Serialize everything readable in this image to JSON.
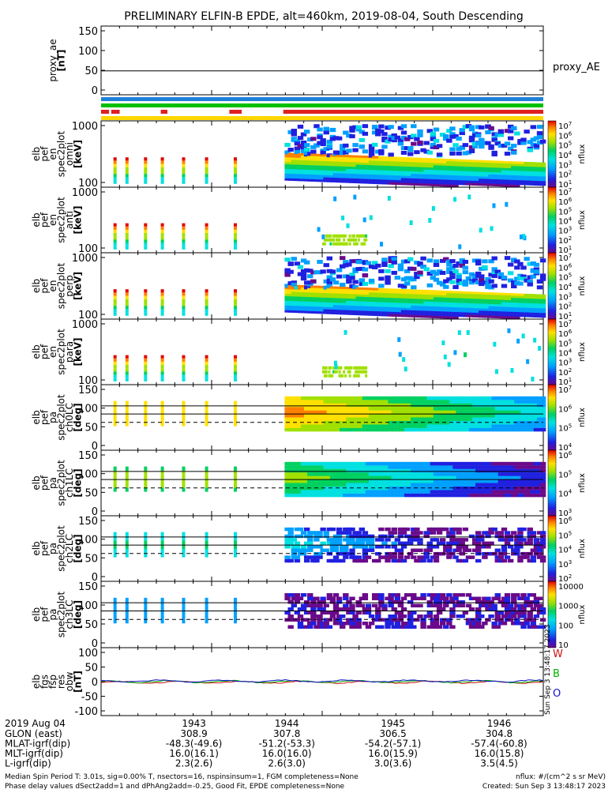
{
  "chart_data": {
    "type": "spectrogram",
    "title": "PRELIMINARY ELFIN-B EPDE, alt=460km, 2019-08-04, South Descending",
    "time_axis": {
      "date_label": "2019 Aug 04",
      "ticks": [
        "1943",
        "1944",
        "1945",
        "1946"
      ]
    },
    "orbit_table": {
      "rows": [
        {
          "label": "GLON (east)",
          "values": [
            "308.9",
            "307.8",
            "306.5",
            "304.8"
          ]
        },
        {
          "label": "MLAT-igrf(dip)",
          "values": [
            "-48.3(-49.6)",
            "-51.2(-53.3)",
            "-54.2(-57.1)",
            "-57.4(-60.8)"
          ]
        },
        {
          "label": "MLT-igrf(dip)",
          "values": [
            "16.0(16.1)",
            "16.0(16.0)",
            "16.0(15.9)",
            "16.0(15.8)"
          ]
        },
        {
          "label": "L-igrf(dip)",
          "values": [
            "2.3(2.6)",
            "2.6(3.0)",
            "3.0(3.6)",
            "3.5(4.5)"
          ]
        }
      ]
    },
    "footnotes": {
      "left1": "Median Spin Period T: 3.01s, sig=0.00% T, nsectors=16, nspinsinsum=1, FGM completeness=None",
      "left2": "Phase delay values dSect2add=1 and dPhAng2add=-0.25, Good Fit, EPDE completeness=None",
      "right1": "nflux: #/(cm^2 s sr MeV)",
      "right2": "Created: Sun Sep  3 13:48:17 2023",
      "side_stamp": "Sun Sep  3 13:48:17 2023"
    },
    "panels": [
      {
        "id": "proxy_ae",
        "type": "line",
        "ylabel_lines": [
          "proxy_ae",
          "[nT]"
        ],
        "ylim": [
          -10,
          160
        ],
        "yticks": [
          "150",
          "100",
          "50",
          "0"
        ],
        "series": [
          {
            "name": "proxy_AE",
            "value": 49
          }
        ]
      },
      {
        "id": "bars",
        "type": "status_bars",
        "bars": [
          {
            "color": "#1e7fd8",
            "full": true
          },
          {
            "color": "#00c000",
            "full": true
          },
          {
            "color": "#e02020",
            "segments": [
              [
                0.0,
                0.018
              ],
              [
                0.023,
                0.042
              ],
              [
                0.135,
                0.15
              ],
              [
                0.29,
                0.318
              ],
              [
                0.412,
                1.0
              ]
            ]
          },
          {
            "color": "#ffd700",
            "full": true
          }
        ]
      },
      {
        "id": "omni",
        "type": "energy_spec",
        "ylabel_lines": [
          "elb",
          "pef",
          "en",
          "spec2plot",
          "omni",
          "[keV]"
        ],
        "yticks": [
          "1000",
          "100"
        ],
        "colorbar": {
          "label": "nflux",
          "ticks": [
            "10",
            "10",
            "10",
            "10",
            "10",
            "10",
            "10"
          ],
          "exps": [
            "7",
            "6",
            "5",
            "4",
            "3",
            "2",
            "1"
          ]
        }
      },
      {
        "id": "anti",
        "type": "energy_spec",
        "ylabel_lines": [
          "elb",
          "pef",
          "en",
          "spec2plot",
          "anti",
          "[keV]"
        ],
        "yticks": [
          "1000",
          "100"
        ],
        "colorbar": {
          "label": "nflux",
          "ticks": [
            "10",
            "10",
            "10",
            "10",
            "10",
            "10",
            "10"
          ],
          "exps": [
            "7",
            "6",
            "5",
            "4",
            "3",
            "2",
            "1"
          ]
        }
      },
      {
        "id": "perp",
        "type": "energy_spec",
        "ylabel_lines": [
          "elb",
          "pef",
          "en",
          "spec2plot",
          "perp",
          "[keV]"
        ],
        "yticks": [
          "1000",
          "100"
        ],
        "colorbar": {
          "label": "nflux",
          "ticks": [
            "10",
            "10",
            "10",
            "10",
            "10",
            "10",
            "10"
          ],
          "exps": [
            "7",
            "6",
            "5",
            "4",
            "3",
            "2",
            "1"
          ]
        }
      },
      {
        "id": "para",
        "type": "energy_spec",
        "ylabel_lines": [
          "elb",
          "pef",
          "en",
          "spec2plot",
          "para",
          "[keV]"
        ],
        "yticks": [
          "1000",
          "100"
        ],
        "colorbar": {
          "label": "nflux",
          "ticks": [
            "10",
            "10",
            "10",
            "10",
            "10",
            "10",
            "10"
          ],
          "exps": [
            "7",
            "6",
            "5",
            "4",
            "3",
            "2",
            "1"
          ]
        }
      },
      {
        "id": "ch0LC",
        "type": "pitch_spec",
        "ylabel_lines": [
          "elb",
          "pef",
          "pa",
          "spec2plot",
          "ch0LC",
          "[deg]"
        ],
        "yticks": [
          "150",
          "100",
          "50",
          "0"
        ],
        "colorbar": {
          "label": "nflux",
          "ticks": [
            "10",
            "10",
            "10",
            "10"
          ],
          "exps": [
            "7",
            "6",
            "5",
            "4"
          ]
        }
      },
      {
        "id": "ch1LC",
        "type": "pitch_spec",
        "ylabel_lines": [
          "elb",
          "pef",
          "pa",
          "spec2plot",
          "ch1LC",
          "[deg]"
        ],
        "yticks": [
          "150",
          "100",
          "50",
          "0"
        ],
        "colorbar": {
          "label": "nflux",
          "ticks": [
            "10",
            "10",
            "10",
            "10"
          ],
          "exps": [
            "6",
            "5",
            "4",
            "3"
          ]
        }
      },
      {
        "id": "ch2LC",
        "type": "pitch_spec",
        "ylabel_lines": [
          "elb",
          "pef",
          "pa",
          "spec2plot",
          "ch2LC",
          "[deg]"
        ],
        "yticks": [
          "150",
          "100",
          "50",
          "0"
        ],
        "colorbar": {
          "label": "nflux",
          "ticks": [
            "10",
            "10",
            "10",
            "10",
            "10"
          ],
          "exps": [
            "6",
            "5",
            "4",
            "3",
            "2"
          ]
        }
      },
      {
        "id": "ch3LC",
        "type": "pitch_spec",
        "ylabel_lines": [
          "elb",
          "pef",
          "pa",
          "spec2plot",
          "ch3LC",
          "[deg]"
        ],
        "yticks": [
          "150",
          "100",
          "50",
          "0"
        ],
        "colorbar": {
          "label": "nflux",
          "ticks": [
            "10000",
            "1000",
            "100",
            "10"
          ],
          "exps": [
            "",
            "",
            "",
            ""
          ]
        }
      },
      {
        "id": "fgs",
        "type": "line",
        "ylabel_lines": [
          "elb",
          "fgs",
          "fsp",
          "res",
          "obw",
          "[nT]"
        ],
        "ylim": [
          -110,
          110
        ],
        "yticks": [
          "100",
          "50",
          "0",
          "-50",
          "-100"
        ],
        "series": [
          {
            "name": "W",
            "color": "#d01010"
          },
          {
            "name": "B",
            "color": "#00b000"
          },
          {
            "name": "O",
            "color": "#1010d0"
          }
        ]
      }
    ]
  }
}
